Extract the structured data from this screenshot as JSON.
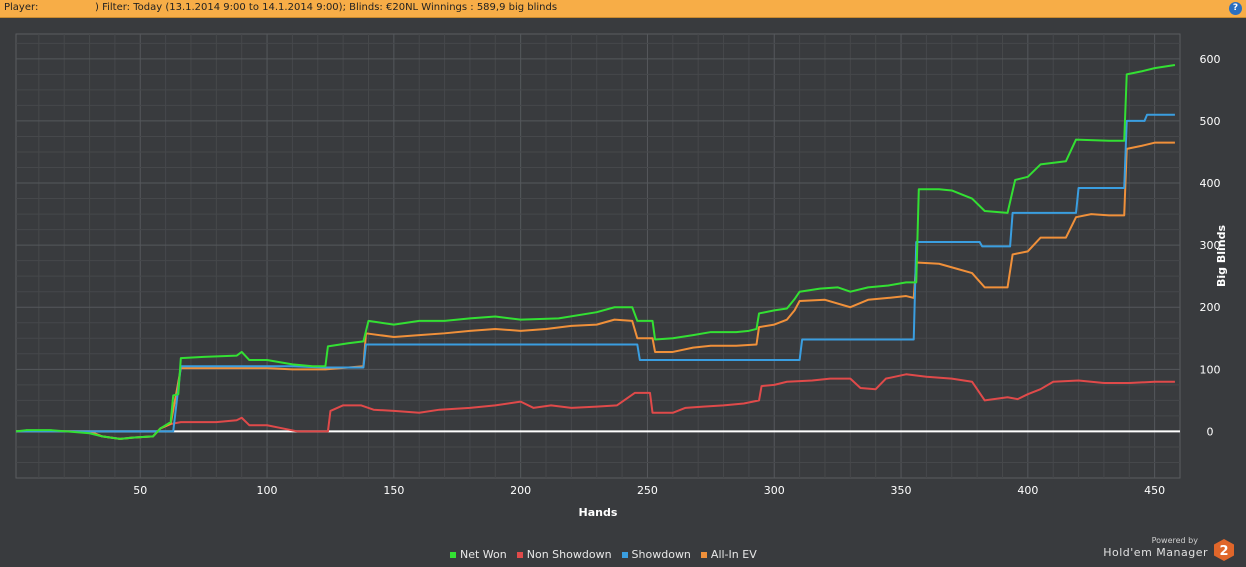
{
  "header": {
    "player_label": "Player:",
    "filter_text": ") Filter: Today (13.1.2014 9:00 to 14.1.2014 9:00); Blinds: €20NL Winnings : 589,9 big blinds",
    "help_icon": "?"
  },
  "brand": {
    "powered_by": "Powered by",
    "name": "Hold'em Manager",
    "logo_text": "2"
  },
  "legend": [
    {
      "name": "Net Won",
      "color": "#33e033"
    },
    {
      "name": "Non Showdown",
      "color": "#e04a4a"
    },
    {
      "name": "Showdown",
      "color": "#3a9ee0"
    },
    {
      "name": "All-In EV",
      "color": "#f0903a"
    }
  ],
  "chart_data": {
    "type": "line",
    "xlabel": "Hands",
    "ylabel": "Big Blinds",
    "xlim": [
      1,
      460
    ],
    "ylim": [
      -75,
      640
    ],
    "xticks": [
      50,
      100,
      150,
      200,
      250,
      300,
      350,
      400,
      450
    ],
    "yticks": [
      0,
      100,
      200,
      300,
      400,
      500,
      600
    ],
    "grid": true,
    "legend_position": "bottom-center",
    "series": [
      {
        "name": "Net Won",
        "color": "#33e033",
        "points": [
          [
            1,
            0
          ],
          [
            5,
            2
          ],
          [
            15,
            2
          ],
          [
            30,
            -3
          ],
          [
            35,
            -8
          ],
          [
            42,
            -12
          ],
          [
            47,
            -10
          ],
          [
            55,
            -8
          ],
          [
            58,
            5
          ],
          [
            62,
            15
          ],
          [
            63,
            58
          ],
          [
            65,
            60
          ],
          [
            66,
            118
          ],
          [
            75,
            120
          ],
          [
            88,
            122
          ],
          [
            90,
            128
          ],
          [
            93,
            115
          ],
          [
            100,
            115
          ],
          [
            110,
            108
          ],
          [
            118,
            105
          ],
          [
            123,
            105
          ],
          [
            124,
            137
          ],
          [
            132,
            142
          ],
          [
            138,
            145
          ],
          [
            140,
            178
          ],
          [
            150,
            172
          ],
          [
            160,
            178
          ],
          [
            170,
            178
          ],
          [
            180,
            182
          ],
          [
            190,
            185
          ],
          [
            200,
            180
          ],
          [
            215,
            182
          ],
          [
            230,
            192
          ],
          [
            237,
            200
          ],
          [
            244,
            200
          ],
          [
            246,
            178
          ],
          [
            252,
            178
          ],
          [
            253,
            148
          ],
          [
            260,
            150
          ],
          [
            268,
            155
          ],
          [
            275,
            160
          ],
          [
            285,
            160
          ],
          [
            290,
            162
          ],
          [
            293,
            165
          ],
          [
            294,
            190
          ],
          [
            300,
            195
          ],
          [
            305,
            198
          ],
          [
            308,
            213
          ],
          [
            310,
            225
          ],
          [
            318,
            230
          ],
          [
            325,
            232
          ],
          [
            330,
            225
          ],
          [
            337,
            232
          ],
          [
            345,
            235
          ],
          [
            352,
            240
          ],
          [
            356,
            240
          ],
          [
            357,
            390
          ],
          [
            365,
            390
          ],
          [
            370,
            388
          ],
          [
            378,
            375
          ],
          [
            383,
            355
          ],
          [
            392,
            352
          ],
          [
            395,
            405
          ],
          [
            400,
            410
          ],
          [
            405,
            430
          ],
          [
            415,
            435
          ],
          [
            419,
            470
          ],
          [
            432,
            468
          ],
          [
            438,
            468
          ],
          [
            439,
            575
          ],
          [
            445,
            580
          ],
          [
            450,
            585
          ],
          [
            458,
            590
          ]
        ]
      },
      {
        "name": "Non Showdown",
        "color": "#e04a4a",
        "points": [
          [
            1,
            0
          ],
          [
            30,
            0
          ],
          [
            35,
            -8
          ],
          [
            42,
            -12
          ],
          [
            47,
            -10
          ],
          [
            55,
            -8
          ],
          [
            58,
            5
          ],
          [
            62,
            12
          ],
          [
            66,
            15
          ],
          [
            80,
            15
          ],
          [
            88,
            18
          ],
          [
            90,
            22
          ],
          [
            93,
            10
          ],
          [
            100,
            10
          ],
          [
            106,
            5
          ],
          [
            112,
            0
          ],
          [
            124,
            0
          ],
          [
            125,
            33
          ],
          [
            130,
            42
          ],
          [
            137,
            42
          ],
          [
            142,
            35
          ],
          [
            150,
            33
          ],
          [
            160,
            30
          ],
          [
            168,
            35
          ],
          [
            180,
            38
          ],
          [
            190,
            42
          ],
          [
            200,
            48
          ],
          [
            205,
            38
          ],
          [
            212,
            42
          ],
          [
            220,
            38
          ],
          [
            230,
            40
          ],
          [
            238,
            42
          ],
          [
            245,
            62
          ],
          [
            251,
            62
          ],
          [
            252,
            30
          ],
          [
            260,
            30
          ],
          [
            265,
            38
          ],
          [
            272,
            40
          ],
          [
            280,
            42
          ],
          [
            288,
            45
          ],
          [
            294,
            50
          ],
          [
            295,
            73
          ],
          [
            300,
            75
          ],
          [
            305,
            80
          ],
          [
            315,
            82
          ],
          [
            322,
            85
          ],
          [
            330,
            85
          ],
          [
            334,
            70
          ],
          [
            340,
            68
          ],
          [
            344,
            85
          ],
          [
            352,
            92
          ],
          [
            360,
            88
          ],
          [
            370,
            85
          ],
          [
            378,
            80
          ],
          [
            383,
            50
          ],
          [
            392,
            55
          ],
          [
            396,
            52
          ],
          [
            400,
            60
          ],
          [
            405,
            68
          ],
          [
            410,
            80
          ],
          [
            420,
            82
          ],
          [
            430,
            78
          ],
          [
            440,
            78
          ],
          [
            450,
            80
          ],
          [
            458,
            80
          ]
        ]
      },
      {
        "name": "Showdown",
        "color": "#3a9ee0",
        "points": [
          [
            1,
            0
          ],
          [
            55,
            0
          ],
          [
            62,
            0
          ],
          [
            63,
            0
          ],
          [
            66,
            105
          ],
          [
            110,
            105
          ],
          [
            123,
            103
          ],
          [
            138,
            103
          ],
          [
            139,
            140
          ],
          [
            246,
            140
          ],
          [
            247,
            115
          ],
          [
            310,
            115
          ],
          [
            311,
            148
          ],
          [
            355,
            148
          ],
          [
            356,
            305
          ],
          [
            381,
            305
          ],
          [
            382,
            298
          ],
          [
            393,
            298
          ],
          [
            394,
            352
          ],
          [
            419,
            352
          ],
          [
            420,
            392
          ],
          [
            438,
            392
          ],
          [
            439,
            500
          ],
          [
            446,
            500
          ],
          [
            447,
            510
          ],
          [
            458,
            510
          ]
        ]
      },
      {
        "name": "All-In EV",
        "color": "#f0903a",
        "points": [
          [
            1,
            0
          ],
          [
            30,
            0
          ],
          [
            35,
            -8
          ],
          [
            42,
            -12
          ],
          [
            47,
            -10
          ],
          [
            55,
            -8
          ],
          [
            58,
            5
          ],
          [
            62,
            12
          ],
          [
            66,
            102
          ],
          [
            100,
            102
          ],
          [
            110,
            100
          ],
          [
            123,
            100
          ],
          [
            138,
            105
          ],
          [
            139,
            158
          ],
          [
            150,
            152
          ],
          [
            160,
            155
          ],
          [
            170,
            158
          ],
          [
            180,
            162
          ],
          [
            190,
            165
          ],
          [
            200,
            162
          ],
          [
            210,
            165
          ],
          [
            220,
            170
          ],
          [
            230,
            172
          ],
          [
            237,
            180
          ],
          [
            244,
            178
          ],
          [
            246,
            150
          ],
          [
            252,
            150
          ],
          [
            253,
            128
          ],
          [
            260,
            128
          ],
          [
            268,
            135
          ],
          [
            275,
            138
          ],
          [
            285,
            138
          ],
          [
            293,
            140
          ],
          [
            294,
            168
          ],
          [
            300,
            172
          ],
          [
            305,
            180
          ],
          [
            308,
            195
          ],
          [
            310,
            210
          ],
          [
            320,
            212
          ],
          [
            330,
            200
          ],
          [
            337,
            212
          ],
          [
            345,
            215
          ],
          [
            352,
            218
          ],
          [
            355,
            215
          ],
          [
            356,
            272
          ],
          [
            365,
            270
          ],
          [
            372,
            262
          ],
          [
            378,
            255
          ],
          [
            383,
            232
          ],
          [
            392,
            232
          ],
          [
            394,
            285
          ],
          [
            400,
            290
          ],
          [
            405,
            312
          ],
          [
            415,
            312
          ],
          [
            419,
            345
          ],
          [
            425,
            350
          ],
          [
            432,
            348
          ],
          [
            438,
            348
          ],
          [
            439,
            455
          ],
          [
            445,
            460
          ],
          [
            450,
            465
          ],
          [
            458,
            465
          ]
        ]
      }
    ]
  }
}
